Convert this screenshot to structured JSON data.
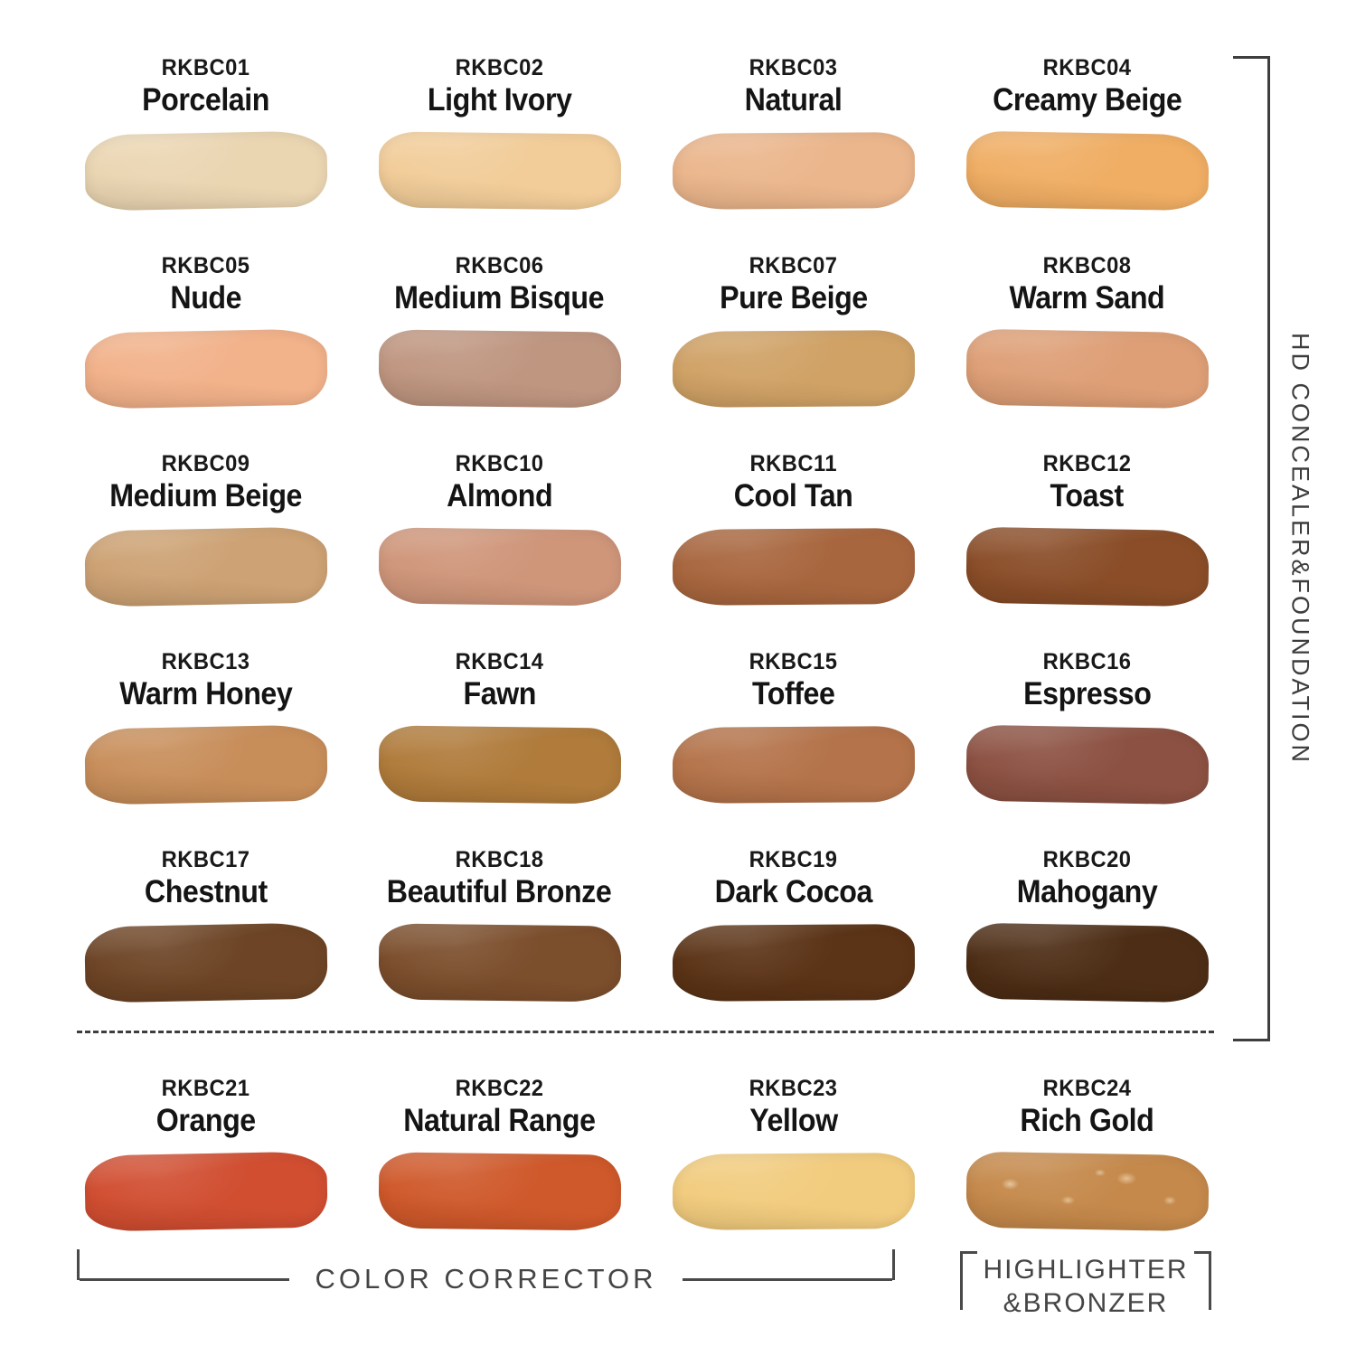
{
  "shades": [
    {
      "code": "RKBC01",
      "name": "Porcelain",
      "color": "#EBD6B2"
    },
    {
      "code": "RKBC02",
      "name": "Light Ivory",
      "color": "#F2CD99"
    },
    {
      "code": "RKBC03",
      "name": "Natural",
      "color": "#EBB68C"
    },
    {
      "code": "RKBC04",
      "name": "Creamy Beige",
      "color": "#F0AE64"
    },
    {
      "code": "RKBC05",
      "name": "Nude",
      "color": "#F2B28A"
    },
    {
      "code": "RKBC06",
      "name": "Medium Bisque",
      "color": "#BF9680"
    },
    {
      "code": "RKBC07",
      "name": "Pure Beige",
      "color": "#D0A266"
    },
    {
      "code": "RKBC08",
      "name": "Warm Sand",
      "color": "#DE9F76"
    },
    {
      "code": "RKBC09",
      "name": "Medium Beige",
      "color": "#CDA274"
    },
    {
      "code": "RKBC10",
      "name": "Almond",
      "color": "#CF967A"
    },
    {
      "code": "RKBC11",
      "name": "Cool Tan",
      "color": "#A8663E"
    },
    {
      "code": "RKBC12",
      "name": "Toast",
      "color": "#8A4D28"
    },
    {
      "code": "RKBC13",
      "name": "Warm Honey",
      "color": "#C88E5A"
    },
    {
      "code": "RKBC14",
      "name": "Fawn",
      "color": "#B07B3B"
    },
    {
      "code": "RKBC15",
      "name": "Toffee",
      "color": "#B4734A"
    },
    {
      "code": "RKBC16",
      "name": "Espresso",
      "color": "#8C5142"
    },
    {
      "code": "RKBC17",
      "name": "Chestnut",
      "color": "#6D4425"
    },
    {
      "code": "RKBC18",
      "name": "Beautiful Bronze",
      "color": "#7B4E2C"
    },
    {
      "code": "RKBC19",
      "name": "Dark Cocoa",
      "color": "#5B3316"
    },
    {
      "code": "RKBC20",
      "name": "Mahogany",
      "color": "#4D2D15"
    },
    {
      "code": "RKBC21",
      "name": "Orange",
      "color": "#D14E31"
    },
    {
      "code": "RKBC22",
      "name": "Natural Range",
      "color": "#CF592B"
    },
    {
      "code": "RKBC23",
      "name": "Yellow",
      "color": "#F2CC7E"
    },
    {
      "code": "RKBC24",
      "name": "Rich Gold",
      "color": "#C5894B"
    }
  ],
  "annotations": {
    "right_group_label": "HD CONCEALER&FOUNDATION",
    "color_corrector_label": "COLOR CORRECTOR",
    "highlighter_label_line1": "HIGHLIGHTER",
    "highlighter_label_line2": "&BRONZER"
  },
  "colors": {
    "background": "#ffffff",
    "shade_text": "#141414",
    "annotation_text": "#454545",
    "line": "#3e3e3e"
  }
}
